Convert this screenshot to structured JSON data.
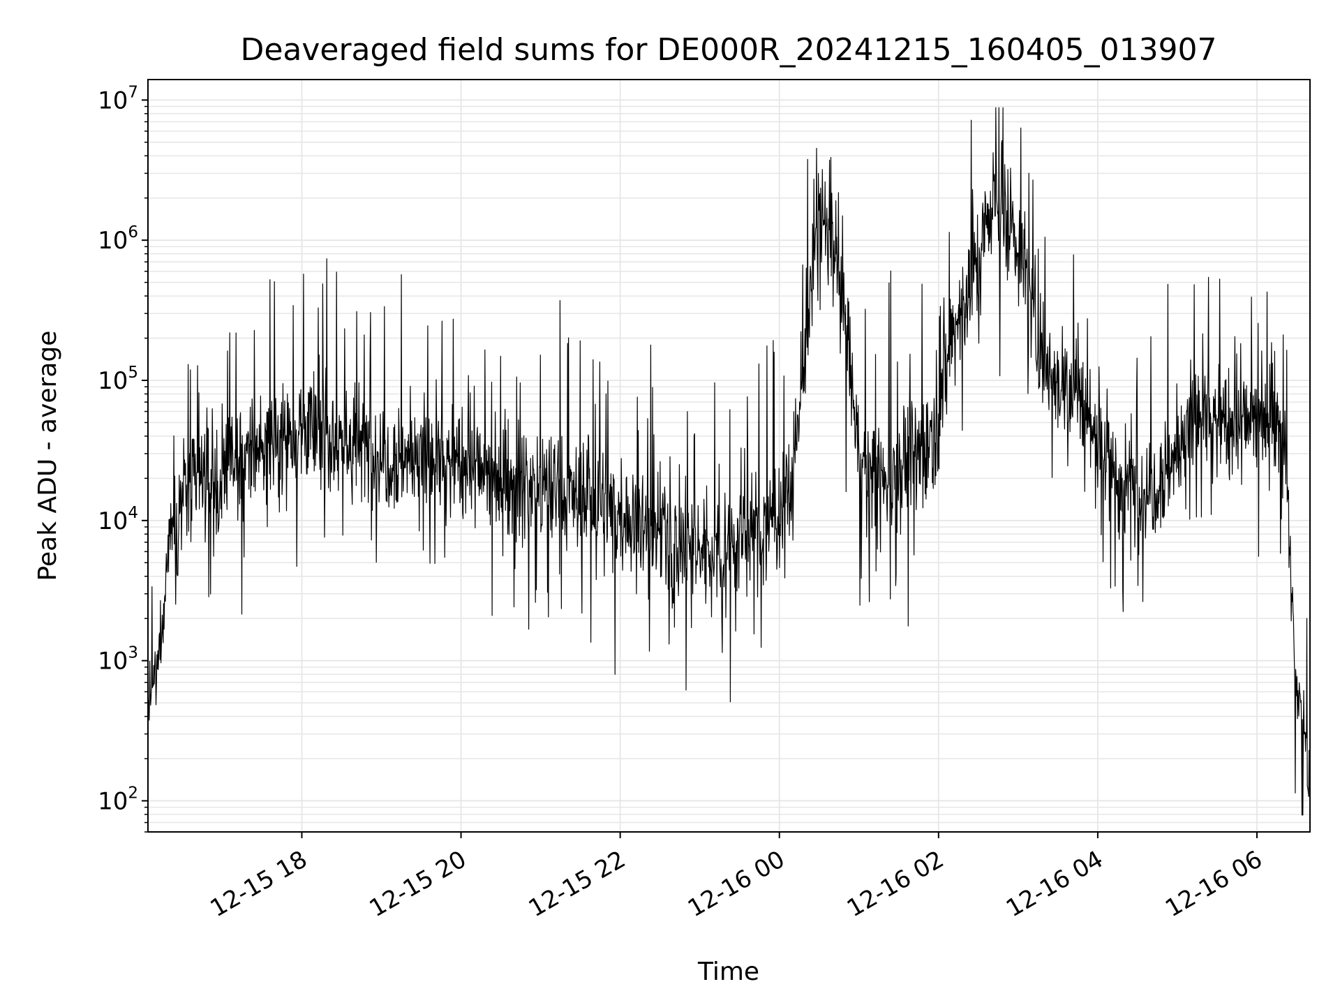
{
  "chart_data": {
    "type": "line",
    "title": "Deaveraged field sums for DE000R_20241215_160405_013907",
    "xlabel": "Time",
    "ylabel": "Peak ADU - average",
    "yscale": "log",
    "ylim": [
      60,
      14000000
    ],
    "xlim": [
      "2024-12-15 16:04",
      "2024-12-16 06:40"
    ],
    "grid": true,
    "line_color": "#000000",
    "grid_color": "#e6e6e6",
    "y_ticks": [
      {
        "base": "10",
        "exp": "2",
        "value": 100
      },
      {
        "base": "10",
        "exp": "3",
        "value": 1000
      },
      {
        "base": "10",
        "exp": "4",
        "value": 10000
      },
      {
        "base": "10",
        "exp": "5",
        "value": 100000
      },
      {
        "base": "10",
        "exp": "6",
        "value": 1000000
      },
      {
        "base": "10",
        "exp": "7",
        "value": 10000000
      }
    ],
    "x_ticks": [
      {
        "label": "12-15 18",
        "time": "2024-12-15 18:00"
      },
      {
        "label": "12-15 20",
        "time": "2024-12-15 20:00"
      },
      {
        "label": "12-15 22",
        "time": "2024-12-15 22:00"
      },
      {
        "label": "12-16 00",
        "time": "2024-12-16 00:00"
      },
      {
        "label": "12-16 02",
        "time": "2024-12-16 02:00"
      },
      {
        "label": "12-16 04",
        "time": "2024-12-16 04:00"
      },
      {
        "label": "12-16 06",
        "time": "2024-12-16 06:00"
      }
    ],
    "series": [
      {
        "x": [
          "2024-12-15 16:04",
          "2024-12-15 16:10",
          "2024-12-15 16:15",
          "2024-12-15 16:20",
          "2024-12-15 16:30",
          "2024-12-15 16:45",
          "2024-12-15 17:00",
          "2024-12-15 17:15",
          "2024-12-15 17:30",
          "2024-12-15 17:45",
          "2024-12-15 18:00",
          "2024-12-15 18:30",
          "2024-12-15 19:00",
          "2024-12-15 19:30",
          "2024-12-15 20:00",
          "2024-12-15 20:30",
          "2024-12-15 21:00",
          "2024-12-15 21:30",
          "2024-12-15 22:00",
          "2024-12-15 22:30",
          "2024-12-15 23:00",
          "2024-12-15 23:30",
          "2024-12-15 23:55",
          "2024-12-16 00:10",
          "2024-12-16 00:20",
          "2024-12-16 00:30",
          "2024-12-16 00:40",
          "2024-12-16 00:50",
          "2024-12-16 01:00",
          "2024-12-16 01:15",
          "2024-12-16 01:30",
          "2024-12-16 01:45",
          "2024-12-16 01:55",
          "2024-12-16 02:10",
          "2024-12-16 02:20",
          "2024-12-16 02:30",
          "2024-12-16 02:40",
          "2024-12-16 02:50",
          "2024-12-16 03:00",
          "2024-12-16 03:15",
          "2024-12-16 03:30",
          "2024-12-16 03:45",
          "2024-12-16 04:00",
          "2024-12-16 04:15",
          "2024-12-16 04:30",
          "2024-12-16 04:45",
          "2024-12-16 05:00",
          "2024-12-16 05:15",
          "2024-12-16 05:30",
          "2024-12-16 05:45",
          "2024-12-16 06:00",
          "2024-12-16 06:15",
          "2024-12-16 06:22",
          "2024-12-16 06:26",
          "2024-12-16 06:30",
          "2024-12-16 06:35",
          "2024-12-16 06:40"
        ],
        "values": [
          500,
          700,
          2000,
          8000,
          15000,
          18000,
          20000,
          25000,
          35000,
          40000,
          45000,
          38000,
          30000,
          28000,
          25000,
          20000,
          17000,
          14000,
          11000,
          8000,
          6000,
          7000,
          10000,
          20000,
          200000,
          1500000,
          1000000,
          300000,
          25000,
          20000,
          25000,
          30000,
          40000,
          200000,
          400000,
          700000,
          2000000,
          1500000,
          1000000,
          200000,
          100000,
          80000,
          40000,
          20000,
          15000,
          20000,
          30000,
          60000,
          50000,
          45000,
          55000,
          60000,
          30000,
          3000,
          600,
          400,
          120
        ]
      }
    ]
  }
}
